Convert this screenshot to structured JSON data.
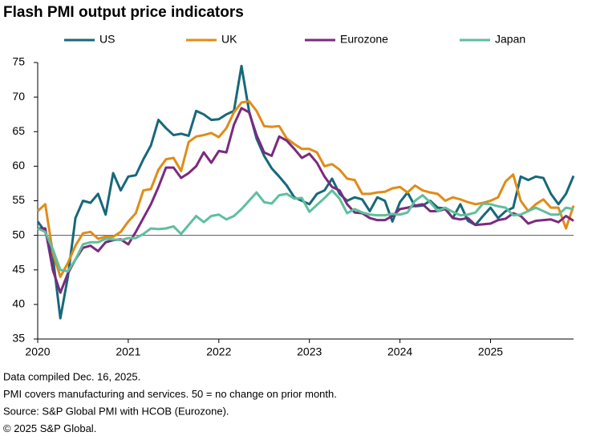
{
  "chart_data": {
    "type": "line",
    "title": "Flash PMI output price indicators",
    "categories": [
      "2020",
      null,
      null,
      null,
      null,
      null,
      null,
      null,
      null,
      null,
      null,
      null,
      "2021",
      null,
      null,
      null,
      null,
      null,
      null,
      null,
      null,
      null,
      null,
      null,
      "2022",
      null,
      null,
      null,
      null,
      null,
      null,
      null,
      null,
      null,
      null,
      null,
      "2023",
      null,
      null,
      null,
      null,
      null,
      null,
      null,
      null,
      null,
      null,
      null,
      "2024",
      null,
      null,
      null,
      null,
      null,
      null,
      null,
      null,
      null,
      null,
      null,
      "2025",
      null,
      null,
      null,
      null,
      null,
      null,
      null,
      null,
      null,
      null,
      null
    ],
    "series": [
      {
        "name": "US",
        "color": "#17687a",
        "values": [
          52,
          50.5,
          47,
          38,
          44,
          52.5,
          55,
          54.7,
          56,
          53,
          59,
          56.5,
          58.5,
          58.7,
          61,
          63,
          66.7,
          65.5,
          64.5,
          64.7,
          64.4,
          68,
          67.5,
          66.7,
          66.8,
          67.5,
          68,
          74.5,
          68,
          64,
          61.5,
          59.7,
          58.5,
          57.2,
          55.5,
          55,
          54.5,
          56,
          56.5,
          58.2,
          56,
          55,
          55.5,
          55.2,
          53.5,
          55.5,
          55,
          52,
          54.8,
          56.2,
          54.2,
          54.3,
          55,
          54,
          53.9,
          52.5,
          54.5,
          52.1,
          51.5,
          52.8,
          54,
          52.5,
          53.5,
          54,
          58.5,
          58,
          58.5,
          58.3,
          56,
          54.5,
          56,
          58.6
        ]
      },
      {
        "name": "UK",
        "color": "#e08c17",
        "values": [
          53.5,
          54.5,
          47.5,
          44,
          46,
          48.5,
          50.3,
          50.5,
          49.5,
          49.8,
          49.8,
          50.5,
          52,
          53.2,
          56.5,
          56.7,
          59.5,
          61,
          61.2,
          59.3,
          63.5,
          64.3,
          64.5,
          64.8,
          64.2,
          65.5,
          67.8,
          69.2,
          69.4,
          68,
          65.8,
          65.7,
          65.8,
          64,
          63.2,
          62.5,
          62.5,
          62,
          60,
          60.3,
          59.5,
          58.2,
          58,
          56,
          56,
          56.2,
          56.3,
          56.8,
          57,
          56.2,
          57.2,
          56.5,
          56.2,
          56,
          55,
          55.5,
          55.2,
          54.8,
          54.5,
          54.7,
          55,
          55.5,
          57.8,
          58.8,
          55,
          53.5,
          54.5,
          55.2,
          54,
          54,
          51,
          54.3
        ]
      },
      {
        "name": "Eurozone",
        "color": "#7b2a7e",
        "values": [
          51,
          51,
          45,
          41.7,
          44.5,
          46.5,
          48.2,
          48.5,
          47.7,
          49,
          49.3,
          49.4,
          48.7,
          50.5,
          52.5,
          54.5,
          57,
          59.8,
          59.8,
          58.3,
          59,
          60,
          62,
          60.5,
          62.2,
          62,
          66,
          68.4,
          67.8,
          64.5,
          62,
          61.5,
          64.3,
          63.7,
          62.5,
          61.2,
          61.8,
          60.5,
          58.5,
          57,
          56.5,
          54.5,
          53.3,
          53.2,
          52.5,
          52.2,
          52.2,
          52.8,
          53.8,
          54,
          54.3,
          54.5,
          53.5,
          53.5,
          53.8,
          52.5,
          52.3,
          52.5,
          51.5,
          51.6,
          51.7,
          52.2,
          52.4,
          53.2,
          52.8,
          51.7,
          52.1,
          52.2,
          52.3,
          51.9,
          52.8,
          52.1
        ]
      },
      {
        "name": "Japan",
        "color": "#5fbf9c",
        "values": [
          51,
          50.5,
          48,
          45,
          44.8,
          46.5,
          48.7,
          49,
          49,
          49.5,
          49.4,
          49.3,
          49.6,
          49.6,
          50.2,
          51,
          50.9,
          51,
          51.3,
          50.2,
          51.5,
          52.8,
          51.9,
          52.8,
          53,
          52.3,
          52.8,
          53.8,
          55,
          56.2,
          54.8,
          54.6,
          55.8,
          56,
          55.3,
          55.4,
          53.4,
          54.4,
          55.4,
          56.5,
          55.3,
          53.2,
          53.8,
          53.3,
          53,
          52.9,
          52.9,
          53.1,
          53,
          53.3,
          55,
          55.8,
          54.8,
          53.5,
          54,
          53.4,
          52.9,
          53,
          53.3,
          54.6,
          54.5,
          54.2,
          54,
          52.9,
          53,
          53.5,
          54,
          53.5,
          53,
          53,
          54,
          53.8
        ]
      }
    ],
    "ylim": [
      35,
      75
    ],
    "yticks": [
      35,
      40,
      45,
      50,
      55,
      60,
      65,
      70,
      75
    ],
    "reference_line": 50,
    "grid": false,
    "notes": [
      "Data compiled Dec. 16, 2025.",
      "PMI covers manufacturing and services. 50 = no change on prior month.",
      "Source: S&P Global PMI with HCOB (Eurozone).",
      "© 2025 S&P Global."
    ]
  }
}
